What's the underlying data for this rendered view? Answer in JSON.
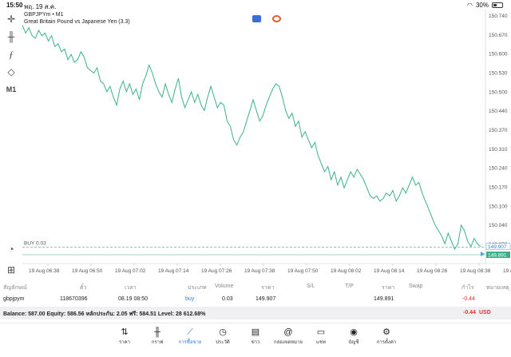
{
  "status_bar": {
    "time": "15:50",
    "date": "พฤ. 19 ส.ค.",
    "battery": "30%"
  },
  "symbol": {
    "line1": "GBPJPYm • M1",
    "line2": "Great Britain Pound vs Japanese Yen (3.3)"
  },
  "left_tools": {
    "timeframe": "M1"
  },
  "chart_data": {
    "type": "line",
    "color": "#3cb08a",
    "ylim": [
      149.9,
      150.78
    ],
    "y_ticks": [
      "150.740",
      "150.670",
      "150.600",
      "150.530",
      "150.500",
      "150.440",
      "150.370",
      "150.310",
      "150.240",
      "150.170",
      "150.100",
      "150.040",
      "149.970"
    ],
    "x_ticks": [
      "19 Aug 06:38",
      "19 Aug 06:50",
      "19 Aug 07:02",
      "19 Aug 07:14",
      "19 Aug 07:26",
      "19 Aug 07:38",
      "19 Aug 07:50",
      "19 Aug 08:02",
      "19 Aug 08:14",
      "19 Aug 08:26",
      "19 Aug 08:38",
      "19 Aug 08:5"
    ],
    "values": [
      150.74,
      150.71,
      150.73,
      150.7,
      150.69,
      150.72,
      150.7,
      150.71,
      150.68,
      150.7,
      150.66,
      150.67,
      150.64,
      150.65,
      150.61,
      150.63,
      150.6,
      150.61,
      150.64,
      150.62,
      150.58,
      150.57,
      150.56,
      150.58,
      150.53,
      150.52,
      150.49,
      150.51,
      150.47,
      150.44,
      150.5,
      150.53,
      150.49,
      150.52,
      150.48,
      150.5,
      150.46,
      150.52,
      150.55,
      150.59,
      150.56,
      150.52,
      150.49,
      150.47,
      150.52,
      150.48,
      150.45,
      150.5,
      150.54,
      150.47,
      150.43,
      150.46,
      150.49,
      150.45,
      150.48,
      150.44,
      150.42,
      150.47,
      150.51,
      150.47,
      150.43,
      150.45,
      150.44,
      150.38,
      150.36,
      150.31,
      150.29,
      150.32,
      150.34,
      150.38,
      150.42,
      150.46,
      150.42,
      150.38,
      150.4,
      150.44,
      150.47,
      150.5,
      150.52,
      150.51,
      150.47,
      150.42,
      150.39,
      150.41,
      150.36,
      150.38,
      150.32,
      150.34,
      150.31,
      150.28,
      150.3,
      150.25,
      150.22,
      150.19,
      150.21,
      150.16,
      150.19,
      150.14,
      150.17,
      150.13,
      150.16,
      150.19,
      150.17,
      150.2,
      150.18,
      150.16,
      150.13,
      150.1,
      150.09,
      150.1,
      150.08,
      150.09,
      150.11,
      150.1,
      150.12,
      150.08,
      150.1,
      150.13,
      150.11,
      150.14,
      150.17,
      150.14,
      150.15,
      150.11,
      150.08,
      150.05,
      150.02,
      149.99,
      149.97,
      149.95,
      149.92,
      149.96,
      149.93,
      149.9,
      149.92,
      149.99,
      149.97,
      149.93,
      149.91,
      149.94,
      149.92,
      149.91
    ],
    "buy_line": {
      "label": "BUY 0.03",
      "value": 149.907,
      "value_label": "149.907"
    },
    "current_price": {
      "value": 149.891,
      "value_label": "149.891"
    }
  },
  "table": {
    "headers": [
      "สัญลักษณ์",
      "ตั๋ว",
      "เวลา",
      "ประเภท",
      "Volume",
      "ราคา",
      "S/L",
      "T/P",
      "ราคา",
      "Swap",
      "กำไร",
      "หมายเหตุ"
    ],
    "row": {
      "symbol": "gbpjpym",
      "ticket": "118670396",
      "time": "08.19 08:50",
      "type": "buy",
      "volume": "0.03",
      "open_price": "149.907",
      "price": "149.891",
      "profit": "-0.44"
    }
  },
  "balance": {
    "text": "Balance: 587.00 Equity: 586.56 หลักประกัน: 2.05 ฟรี: 584.51 Level: 28 612.68%",
    "pl": "-0.44",
    "currency": "USD"
  },
  "nav": [
    {
      "label": "ราคา",
      "icon": "quotes-icon"
    },
    {
      "label": "กราฟ",
      "icon": "chart-icon"
    },
    {
      "label": "การซื้อขาย",
      "icon": "trade-icon"
    },
    {
      "label": "ประวัติ",
      "icon": "history-icon"
    },
    {
      "label": "ข่าว",
      "icon": "news-icon"
    },
    {
      "label": "กล่องจดหมาย",
      "icon": "mailbox-icon"
    },
    {
      "label": "แชท",
      "icon": "chat-icon"
    },
    {
      "label": "บัญชี",
      "icon": "account-icon"
    },
    {
      "label": "การตั้งค่า",
      "icon": "settings-icon"
    }
  ],
  "colors": {
    "accent": "#2b7de9",
    "line": "#3cb08a",
    "loss": "#e0302e"
  }
}
